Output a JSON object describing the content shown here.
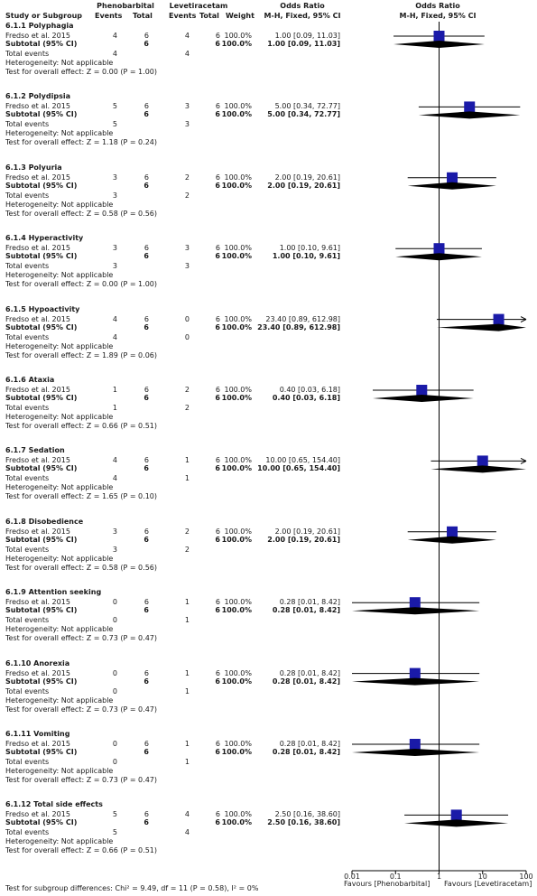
{
  "header": {
    "study_or_subgroup": "Study or Subgroup",
    "group1": "Phenobarbital",
    "group2": "Levetiracetam",
    "events": "Events",
    "total": "Total",
    "weight": "Weight",
    "odds_ratio": "Odds Ratio",
    "method": "M-H, Fixed, 95% CI"
  },
  "labels": {
    "total_events": "Total events",
    "heterogeneity": "Heterogeneity: Not applicable",
    "subtotal": "Subtotal (95% CI)",
    "favours_left": "Favours [Phenobarbital]",
    "favours_right": "Favours [Levetiracetam]",
    "subgroup_differences": "Test for subgroup differences: Chi² = 9.49, df = 11 (P = 0.58), I² = 0%"
  },
  "colors": {
    "square": "#1a1aa8",
    "diamond": "#000000"
  },
  "chart_data": {
    "type": "forest",
    "x_scale": "log",
    "xlim": [
      0.01,
      100
    ],
    "x_ticks": [
      "0.01",
      "0.1",
      "1",
      "10",
      "100"
    ],
    "reference_line": 1,
    "subgroups": [
      {
        "title": "6.1.1 Polyphagia",
        "study": "Fredso et al. 2015",
        "e1": "4",
        "t1": "6",
        "e2": "4",
        "t2": "6",
        "weight": "100.0%",
        "or": 1.0,
        "lo": 0.09,
        "hi": 11.03,
        "ci_text": "1.00 [0.09, 11.03]",
        "tot1": "4",
        "tot2": "4",
        "test": "Test for overall effect: Z = 0.00 (P = 1.00)"
      },
      {
        "title": "6.1.2 Polydipsia",
        "study": "Fredso et al. 2015",
        "e1": "5",
        "t1": "6",
        "e2": "3",
        "t2": "6",
        "weight": "100.0%",
        "or": 5.0,
        "lo": 0.34,
        "hi": 72.77,
        "ci_text": "5.00 [0.34, 72.77]",
        "tot1": "5",
        "tot2": "3",
        "test": "Test for overall effect: Z = 1.18 (P = 0.24)"
      },
      {
        "title": "6.1.3 Polyuria",
        "study": "Fredso et al. 2015",
        "e1": "3",
        "t1": "6",
        "e2": "2",
        "t2": "6",
        "weight": "100.0%",
        "or": 2.0,
        "lo": 0.19,
        "hi": 20.61,
        "ci_text": "2.00 [0.19, 20.61]",
        "tot1": "3",
        "tot2": "2",
        "test": "Test for overall effect: Z = 0.58 (P = 0.56)"
      },
      {
        "title": "6.1.4 Hyperactivity",
        "study": "Fredso et al. 2015",
        "e1": "3",
        "t1": "6",
        "e2": "3",
        "t2": "6",
        "weight": "100.0%",
        "or": 1.0,
        "lo": 0.1,
        "hi": 9.61,
        "ci_text": "1.00 [0.10, 9.61]",
        "tot1": "3",
        "tot2": "3",
        "test": "Test for overall effect: Z = 0.00 (P = 1.00)"
      },
      {
        "title": "6.1.5 Hypoactivity",
        "study": "Fredso et al. 2015",
        "e1": "4",
        "t1": "6",
        "e2": "0",
        "t2": "6",
        "weight": "100.0%",
        "or": 23.4,
        "lo": 0.89,
        "hi": 612.98,
        "ci_text": "23.40 [0.89, 612.98]",
        "tot1": "4",
        "tot2": "0",
        "test": "Test for overall effect: Z = 1.89 (P = 0.06)"
      },
      {
        "title": "6.1.6 Ataxia",
        "study": "Fredso et al. 2015",
        "e1": "1",
        "t1": "6",
        "e2": "2",
        "t2": "6",
        "weight": "100.0%",
        "or": 0.4,
        "lo": 0.03,
        "hi": 6.18,
        "ci_text": "0.40 [0.03, 6.18]",
        "tot1": "1",
        "tot2": "2",
        "test": "Test for overall effect: Z = 0.66 (P = 0.51)"
      },
      {
        "title": "6.1.7 Sedation",
        "study": "Fredso et al. 2015",
        "e1": "4",
        "t1": "6",
        "e2": "1",
        "t2": "6",
        "weight": "100.0%",
        "or": 10.0,
        "lo": 0.65,
        "hi": 154.4,
        "ci_text": "10.00 [0.65, 154.40]",
        "tot1": "4",
        "tot2": "1",
        "test": "Test for overall effect: Z = 1.65 (P = 0.10)"
      },
      {
        "title": "6.1.8 Disobedience",
        "study": "Fredso et al. 2015",
        "e1": "3",
        "t1": "6",
        "e2": "2",
        "t2": "6",
        "weight": "100.0%",
        "or": 2.0,
        "lo": 0.19,
        "hi": 20.61,
        "ci_text": "2.00 [0.19, 20.61]",
        "tot1": "3",
        "tot2": "2",
        "test": "Test for overall effect: Z = 0.58 (P = 0.56)"
      },
      {
        "title": "6.1.9 Attention seeking",
        "study": "Fredso et al. 2015",
        "e1": "0",
        "t1": "6",
        "e2": "1",
        "t2": "6",
        "weight": "100.0%",
        "or": 0.28,
        "lo": 0.01,
        "hi": 8.42,
        "ci_text": "0.28 [0.01, 8.42]",
        "tot1": "0",
        "tot2": "1",
        "test": "Test for overall effect: Z = 0.73 (P = 0.47)"
      },
      {
        "title": "6.1.10 Anorexia",
        "study": "Fredso et al. 2015",
        "e1": "0",
        "t1": "6",
        "e2": "1",
        "t2": "6",
        "weight": "100.0%",
        "or": 0.28,
        "lo": 0.01,
        "hi": 8.42,
        "ci_text": "0.28 [0.01, 8.42]",
        "tot1": "0",
        "tot2": "1",
        "test": "Test for overall effect: Z = 0.73 (P = 0.47)"
      },
      {
        "title": "6.1.11 Vomiting",
        "study": "Fredso et al. 2015",
        "e1": "0",
        "t1": "6",
        "e2": "1",
        "t2": "6",
        "weight": "100.0%",
        "or": 0.28,
        "lo": 0.01,
        "hi": 8.42,
        "ci_text": "0.28 [0.01, 8.42]",
        "tot1": "0",
        "tot2": "1",
        "test": "Test for overall effect: Z = 0.73 (P = 0.47)"
      },
      {
        "title": "6.1.12 Total side effects",
        "study": "Fredso et al. 2015",
        "e1": "5",
        "t1": "6",
        "e2": "4",
        "t2": "6",
        "weight": "100.0%",
        "or": 2.5,
        "lo": 0.16,
        "hi": 38.6,
        "ci_text": "2.50 [0.16, 38.60]",
        "tot1": "5",
        "tot2": "4",
        "test": "Test for overall effect: Z = 0.66 (P = 0.51)"
      }
    ]
  }
}
